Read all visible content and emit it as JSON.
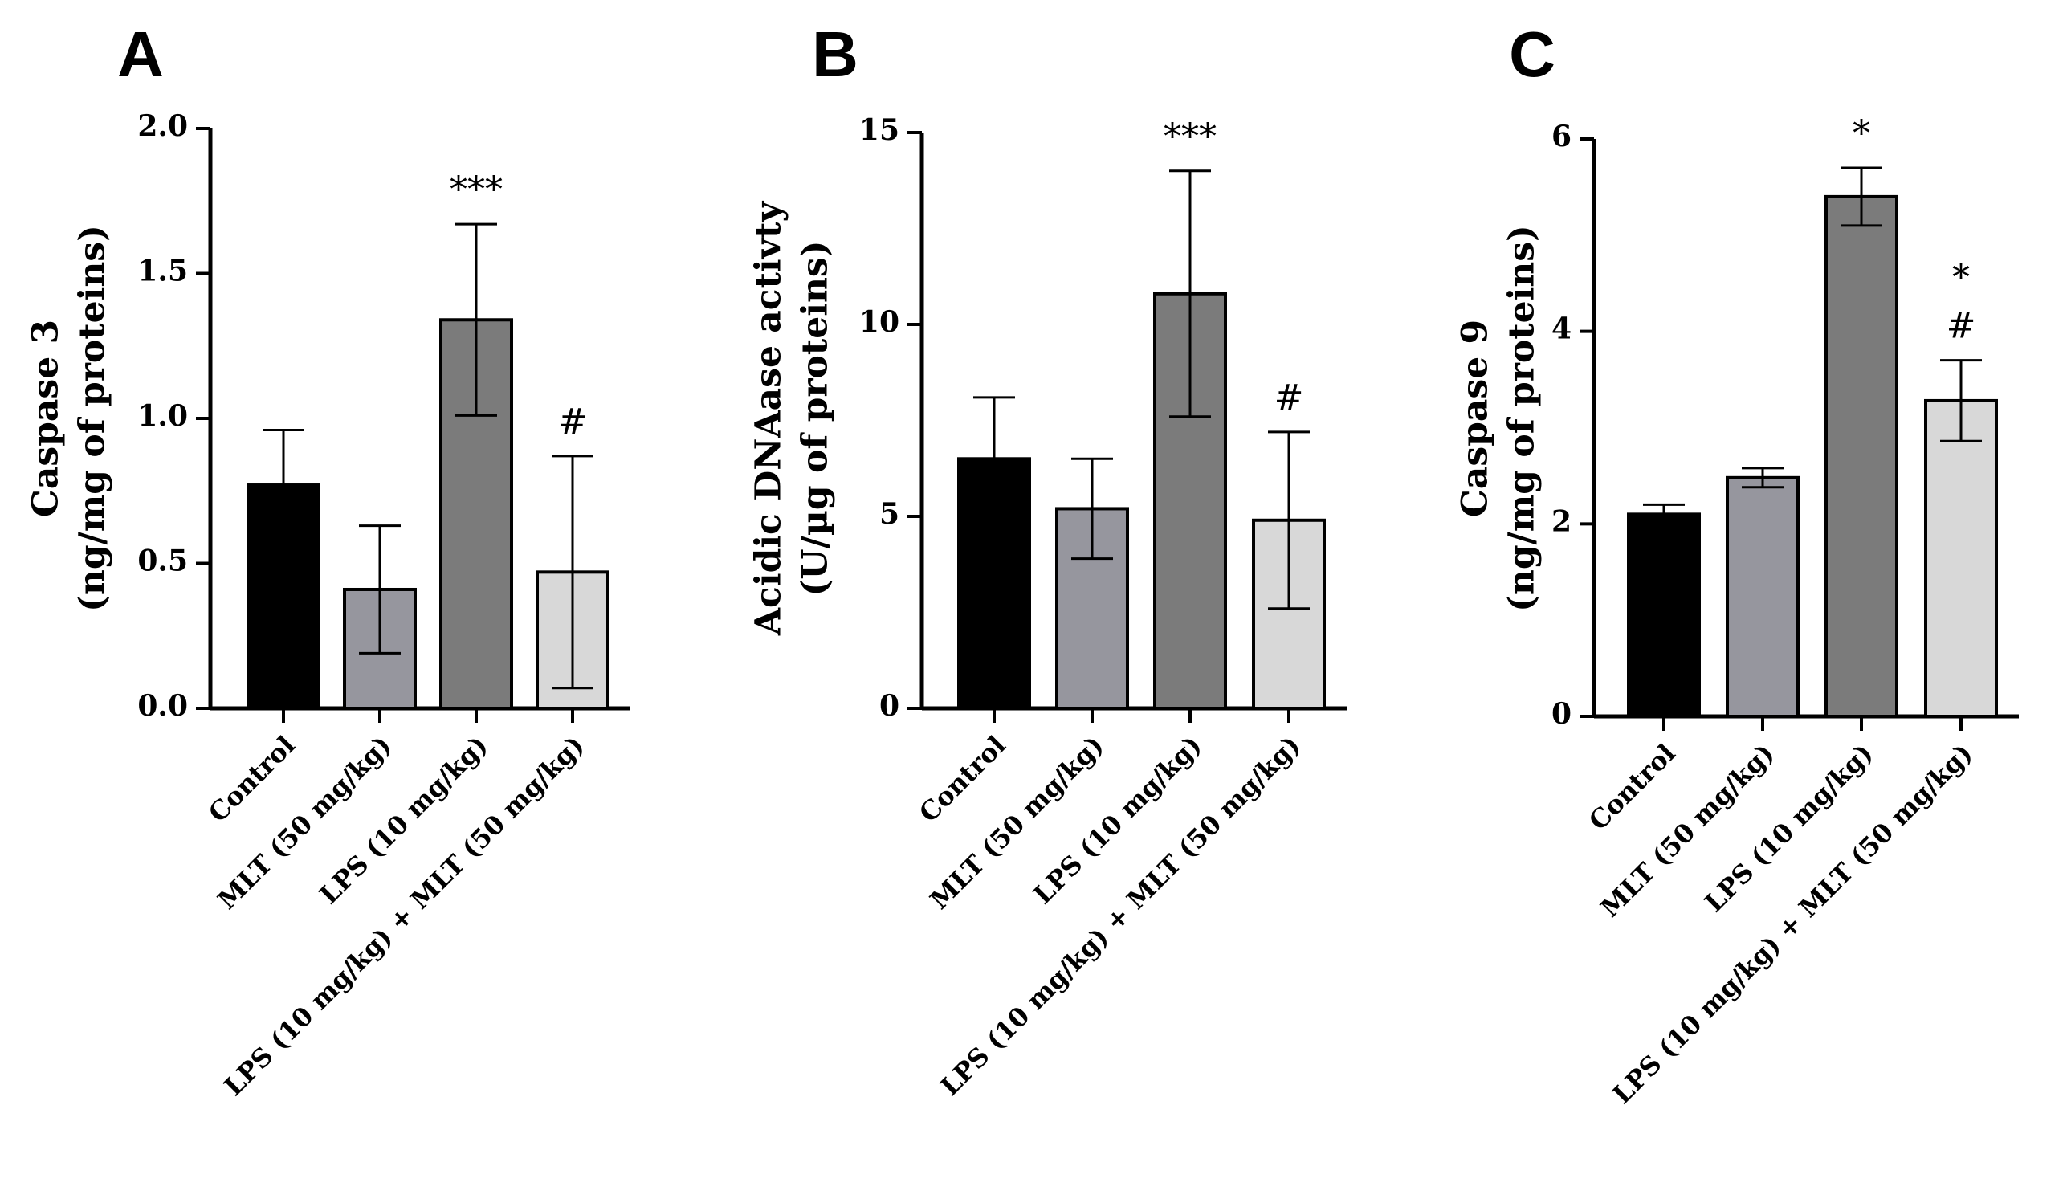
{
  "chart_data": [
    {
      "panel": "A",
      "type": "bar",
      "ylabel_lines": [
        "Caspase 3",
        "(ng/mg of proteins)"
      ],
      "ylim": [
        0,
        2.0
      ],
      "yticks": [
        "0.0",
        "0.5",
        "1.0",
        "1.5",
        "2.0"
      ],
      "ytick_values": [
        0,
        0.5,
        1.0,
        1.5,
        2.0
      ],
      "categories": [
        "Control",
        "MLT (50 mg/kg)",
        "LPS (10 mg/kg)",
        "LPS (10 mg/kg) + MLT (50 mg/kg)"
      ],
      "values": [
        0.77,
        0.41,
        1.34,
        0.47
      ],
      "errors": [
        0.19,
        0.22,
        0.33,
        0.4
      ],
      "colors": [
        "#000000",
        "#96969e",
        "#7b7b7b",
        "#d8d8d8"
      ],
      "annotations": [
        "",
        "",
        "***",
        "#"
      ]
    },
    {
      "panel": "B",
      "type": "bar",
      "ylabel_lines": [
        "Acidic DNAase activty",
        "(U/µg of proteins)"
      ],
      "ylim": [
        0,
        15
      ],
      "yticks": [
        "0",
        "5",
        "10",
        "15"
      ],
      "ytick_values": [
        0,
        5,
        10,
        15
      ],
      "categories": [
        "Control",
        "MLT (50 mg/kg)",
        "LPS (10 mg/kg)",
        "LPS (10 mg/kg) + MLT (50 mg/kg)"
      ],
      "values": [
        6.5,
        5.2,
        10.8,
        4.9
      ],
      "errors": [
        1.6,
        1.3,
        3.2,
        2.3
      ],
      "colors": [
        "#000000",
        "#96969e",
        "#7b7b7b",
        "#d8d8d8"
      ],
      "annotations": [
        "",
        "",
        "***",
        "#"
      ]
    },
    {
      "panel": "C",
      "type": "bar",
      "ylabel_lines": [
        "Caspase 9",
        "(ng/mg of proteins)"
      ],
      "ylim": [
        0,
        6
      ],
      "yticks": [
        "0",
        "2",
        "4",
        "6"
      ],
      "ytick_values": [
        0,
        2,
        4,
        6
      ],
      "categories": [
        "Control",
        "MLT (50 mg/kg)",
        "LPS (10 mg/kg)",
        "LPS (10 mg/kg) + MLT (50 mg/kg)"
      ],
      "values": [
        2.1,
        2.48,
        5.4,
        3.28
      ],
      "errors": [
        0.1,
        0.1,
        0.3,
        0.42
      ],
      "colors": [
        "#000000",
        "#96969e",
        "#7b7b7b",
        "#d8d8d8"
      ],
      "annotations": [
        "",
        "",
        "*",
        "*\n#"
      ]
    }
  ]
}
